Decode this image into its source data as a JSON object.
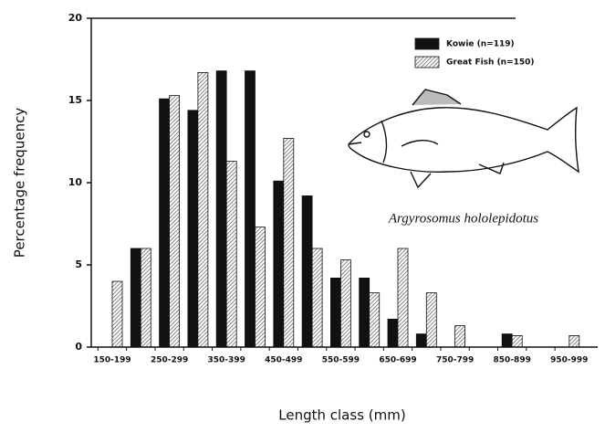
{
  "chart_data": {
    "type": "bar",
    "categories": [
      "150-199",
      null,
      "250-299",
      null,
      "350-399",
      null,
      "450-499",
      null,
      "550-599",
      null,
      "650-699",
      null,
      "750-799",
      null,
      "850-899",
      null,
      "950-999"
    ],
    "series": [
      {
        "name": "Kowie (n=119)",
        "color": "#111111",
        "values": [
          0,
          6.0,
          15.1,
          14.4,
          16.8,
          16.8,
          10.1,
          9.2,
          4.2,
          4.2,
          1.7,
          0.8,
          0,
          0,
          0.8,
          0,
          0
        ]
      },
      {
        "name": "Great Fish (n=150)",
        "color": "#555555",
        "values": [
          4.0,
          6.0,
          15.3,
          16.7,
          11.3,
          7.3,
          12.7,
          6.0,
          5.3,
          3.3,
          6.0,
          3.3,
          1.3,
          0,
          0.7,
          0,
          0.7
        ]
      }
    ],
    "ylim": [
      0,
      20
    ],
    "yticks": [
      0,
      5,
      10,
      15,
      20
    ],
    "y_label": "Percentage frequency",
    "x_label": "Length class (mm)",
    "annotation": "Argyrosomus hololepidotus",
    "legend": "upper right"
  }
}
